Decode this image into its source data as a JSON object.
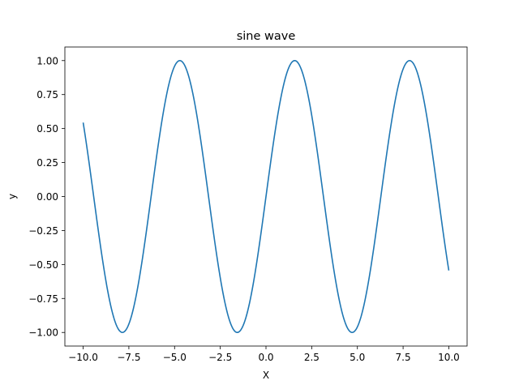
{
  "chart_data": {
    "type": "line",
    "title": "sine wave",
    "xlabel": "X",
    "ylabel": "y",
    "xlim": [
      -11.0,
      11.0
    ],
    "ylim": [
      -1.1,
      1.1
    ],
    "xticks": [
      -10.0,
      -7.5,
      -5.0,
      -2.5,
      0.0,
      2.5,
      5.0,
      7.5,
      10.0
    ],
    "xtick_labels": [
      "−10.0",
      "−7.5",
      "−5.0",
      "−2.5",
      "0.0",
      "2.5",
      "5.0",
      "7.5",
      "10.0"
    ],
    "yticks": [
      -1.0,
      -0.75,
      -0.5,
      -0.25,
      0.0,
      0.25,
      0.5,
      0.75,
      1.0
    ],
    "ytick_labels": [
      "−1.00",
      "−0.75",
      "−0.50",
      "−0.25",
      "0.00",
      "0.25",
      "0.50",
      "0.75",
      "1.00"
    ],
    "grid": false,
    "series": [
      {
        "function": "sin(x)",
        "color": "#1f77b4",
        "x": [
          -10.0,
          -9.5,
          -9.0,
          -8.5,
          -8.0,
          -7.5,
          -7.0,
          -6.5,
          -6.0,
          -5.5,
          -5.0,
          -4.5,
          -4.0,
          -3.5,
          -3.0,
          -2.5,
          -2.0,
          -1.5,
          -1.0,
          -0.5,
          0.0,
          0.5,
          1.0,
          1.5,
          2.0,
          2.5,
          3.0,
          3.5,
          4.0,
          4.5,
          5.0,
          5.5,
          6.0,
          6.5,
          7.0,
          7.5,
          8.0,
          8.5,
          9.0,
          9.5,
          10.0
        ],
        "y": [
          0.544,
          0.075,
          -0.412,
          -0.798,
          -0.989,
          -0.938,
          -0.657,
          -0.215,
          0.279,
          0.706,
          0.959,
          0.978,
          0.757,
          0.351,
          -0.141,
          -0.598,
          -0.909,
          -0.997,
          -0.841,
          -0.479,
          0.0,
          0.479,
          0.841,
          0.997,
          0.909,
          0.598,
          0.141,
          -0.351,
          -0.757,
          -0.978,
          -0.959,
          -0.706,
          -0.279,
          0.215,
          0.657,
          0.938,
          0.989,
          0.798,
          0.412,
          -0.075,
          -0.544
        ]
      }
    ]
  }
}
